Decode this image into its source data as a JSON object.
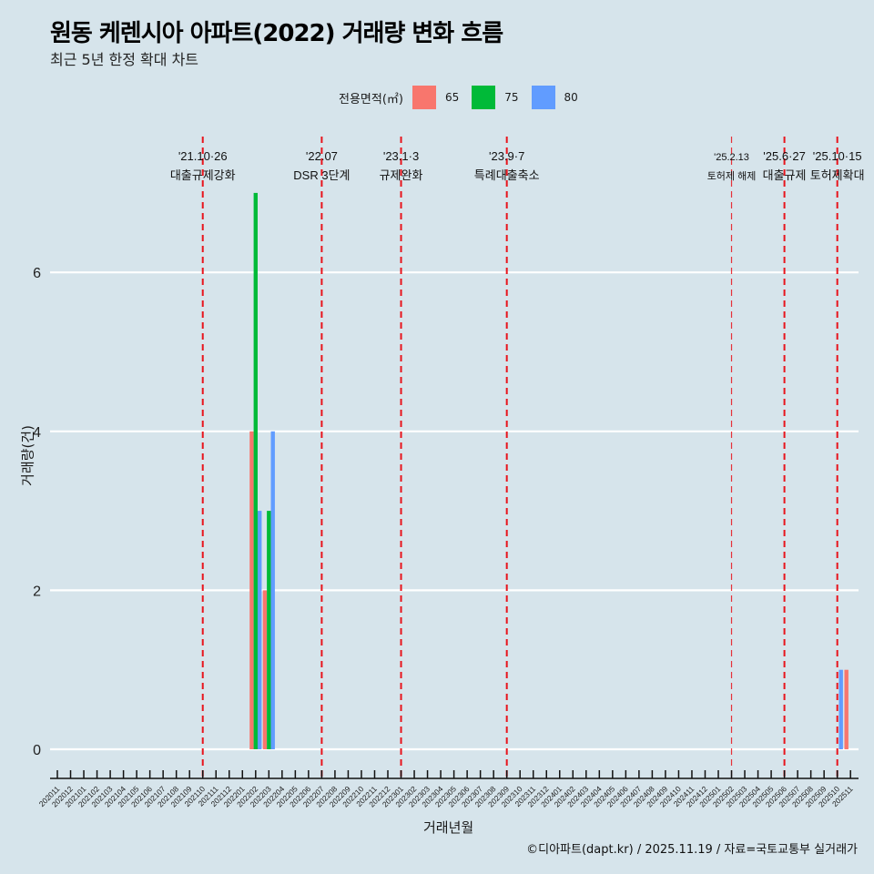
{
  "chart_data": {
    "type": "bar",
    "title": "원동 케렌시아 아파트(2022) 거래량 변화 흐름",
    "subtitle": "최근 5년 한정 확대 차트",
    "xlabel": "거래년월",
    "ylabel": "거래량(건)",
    "ylim": [
      0,
      7
    ],
    "yticks": [
      0,
      2,
      4,
      6
    ],
    "grid": true,
    "legend_position": "top",
    "legend_title": "전용면적(㎡)",
    "categories": [
      "202011",
      "202012",
      "202101",
      "202102",
      "202103",
      "202104",
      "202105",
      "202106",
      "202107",
      "202108",
      "202109",
      "202110",
      "202111",
      "202112",
      "202201",
      "202202",
      "202203",
      "202204",
      "202205",
      "202206",
      "202207",
      "202208",
      "202209",
      "202210",
      "202211",
      "202212",
      "202301",
      "202302",
      "202303",
      "202304",
      "202305",
      "202306",
      "202307",
      "202308",
      "202309",
      "202310",
      "202311",
      "202312",
      "202401",
      "202402",
      "202403",
      "202404",
      "202405",
      "202406",
      "202407",
      "202408",
      "202409",
      "202410",
      "202411",
      "202412",
      "202501",
      "202502",
      "202503",
      "202504",
      "202505",
      "202506",
      "202507",
      "202508",
      "202509",
      "202510",
      "202511"
    ],
    "series": [
      {
        "name": "65",
        "color": "#f8766d",
        "points": [
          {
            "x": "202202",
            "y": 4
          },
          {
            "x": "202203",
            "y": 2
          },
          {
            "x": "202511",
            "y": 1
          }
        ]
      },
      {
        "name": "75",
        "color": "#00ba38",
        "points": [
          {
            "x": "202202",
            "y": 7
          },
          {
            "x": "202203",
            "y": 3
          }
        ]
      },
      {
        "name": "80",
        "color": "#619cff",
        "points": [
          {
            "x": "202202",
            "y": 3
          },
          {
            "x": "202203",
            "y": 4
          },
          {
            "x": "202510",
            "y": 1
          }
        ]
      }
    ],
    "annotations": [
      {
        "x": "202110",
        "date": "'21.10·26",
        "label": "대출규제강화"
      },
      {
        "x": "202207",
        "date": "'22.07",
        "label": "DSR 3단계"
      },
      {
        "x": "202301",
        "date": "'23.1·3",
        "label": "규제완화"
      },
      {
        "x": "202309",
        "date": "'23.9·7",
        "label": "특례대출축소"
      },
      {
        "x": "202502",
        "date": "'25.2.13",
        "label": "토허제 해제"
      },
      {
        "x": "202506",
        "date": "'25.6·27",
        "label": "대출규제"
      },
      {
        "x": "202510",
        "date": "'25.10·15",
        "label": "토허제확대"
      }
    ]
  },
  "header": {
    "title": "원동 케렌시아 아파트(2022) 거래량 변화 흐름",
    "subtitle": "최근 5년 한정 확대 차트"
  },
  "legend": {
    "title": "전용면적(㎡)",
    "items": [
      {
        "label": "65",
        "color": "#f8766d"
      },
      {
        "label": "75",
        "color": "#00ba38"
      },
      {
        "label": "80",
        "color": "#619cff"
      }
    ]
  },
  "axes": {
    "xlabel": "거래년월",
    "ylabel": "거래량(건)"
  },
  "caption": "©디아파트(dapt.kr) / 2025.11.19 / 자료=국토교통부 실거래가"
}
